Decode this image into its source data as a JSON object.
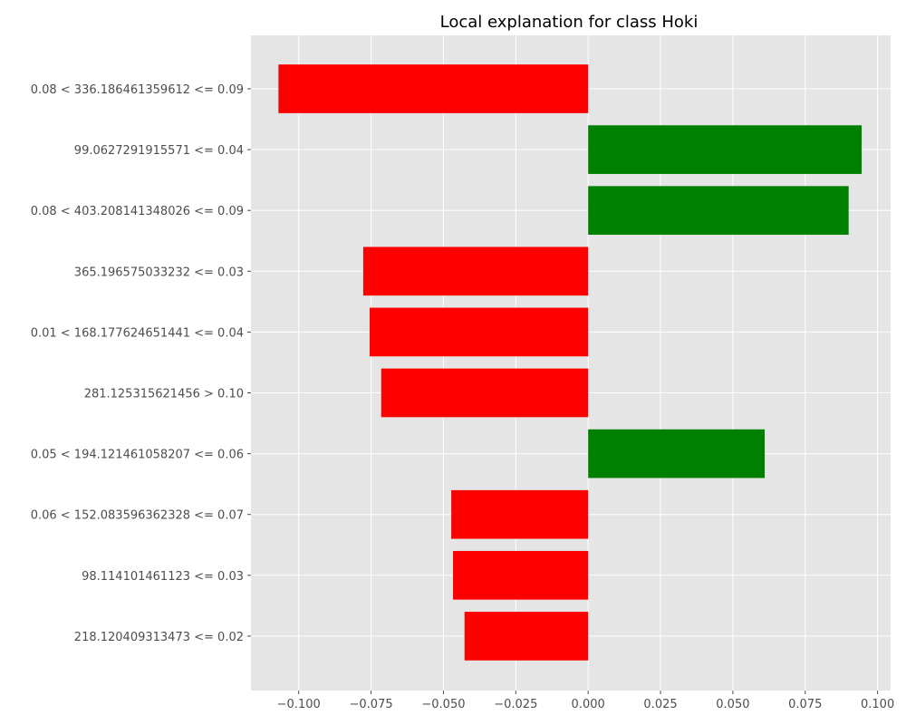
{
  "chart_data": {
    "type": "bar",
    "orientation": "horizontal",
    "title": "Local explanation for class Hoki",
    "xlabel": "",
    "ylabel": "",
    "categories": [
      "0.08 < 336.186461359612 <= 0.09",
      "99.0627291915571 <= 0.04",
      "0.08 < 403.208141348026 <= 0.09",
      "365.196575033232 <= 0.03",
      "0.01 < 168.177624651441 <= 0.04",
      "281.125315621456 > 0.10",
      "0.05 < 194.121461058207 <= 0.06",
      "0.06 < 152.083596362328 <= 0.07",
      "98.114101461123 <= 0.03",
      "218.120409313473 <= 0.02"
    ],
    "values": [
      -0.107,
      0.0945,
      0.09,
      -0.0777,
      -0.0755,
      -0.0715,
      0.061,
      -0.0473,
      -0.0467,
      -0.0427
    ],
    "xlim": [
      -0.1165,
      0.1045
    ],
    "xticks": [
      -0.1,
      -0.075,
      -0.05,
      -0.025,
      0.0,
      0.025,
      0.05,
      0.075,
      0.1
    ],
    "xtick_labels": [
      "−0.100",
      "−0.075",
      "−0.050",
      "−0.025",
      "0.000",
      "0.025",
      "0.050",
      "0.075",
      "0.100"
    ],
    "grid": true,
    "colors": {
      "positive": "#008000",
      "negative": "#ff0000",
      "background": "#e5e5e5",
      "grid": "#ffffff",
      "text": "#4d4d4d"
    }
  }
}
